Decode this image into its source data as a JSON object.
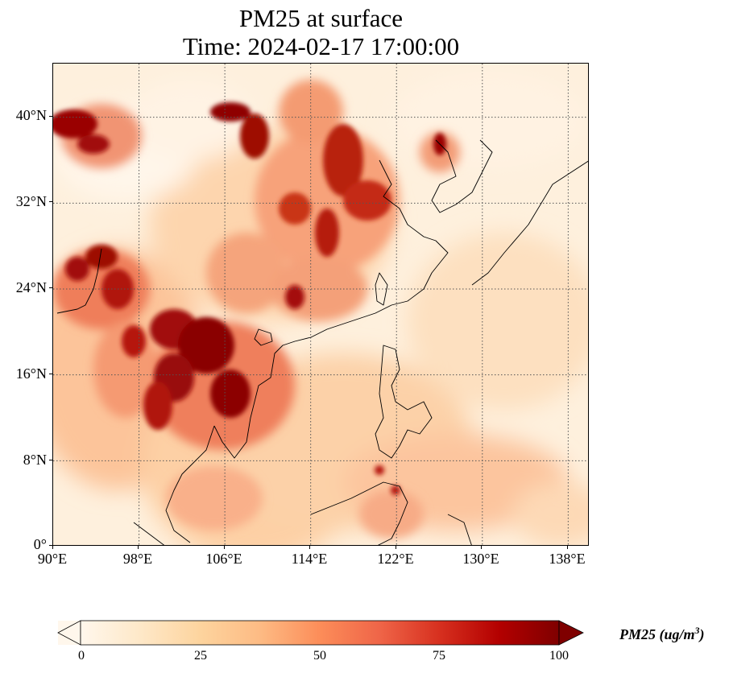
{
  "title": {
    "line1": "PM25 at surface",
    "line2": "Time: 2024-02-17 17:00:00"
  },
  "map": {
    "lon_range": [
      90,
      140
    ],
    "lat_range": [
      0,
      45
    ],
    "lat_ticks": [
      "0°",
      "8°N",
      "16°N",
      "24°N",
      "32°N",
      "40°N"
    ],
    "lon_ticks": [
      "90°E",
      "98°E",
      "106°E",
      "114°E",
      "122°E",
      "130°E",
      "138°E"
    ],
    "colormap": "OrRd"
  },
  "colorbar": {
    "ticks": [
      "0",
      "25",
      "50",
      "75",
      "100"
    ],
    "label_text": "PM25 (ug/m",
    "label_exp": "3",
    "label_close": ")",
    "colors": [
      "#fff7ec",
      "#fee8c8",
      "#fdd49e",
      "#fdbb84",
      "#fc8d59",
      "#ef6548",
      "#d7301f",
      "#b30000",
      "#7f0000"
    ]
  }
}
